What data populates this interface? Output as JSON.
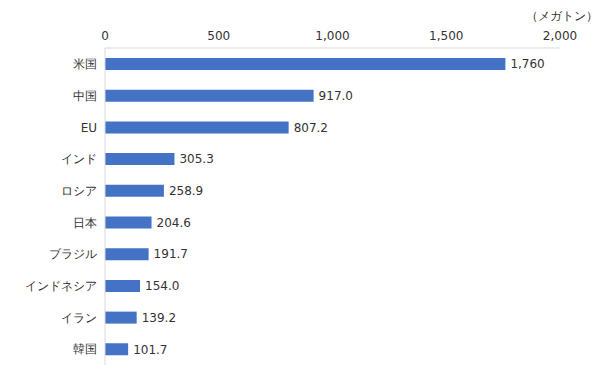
{
  "chart_data": {
    "type": "bar",
    "orientation": "horizontal",
    "xlabel": "（メガトン）",
    "categories": [
      "米国",
      "中国",
      "EU",
      "インド",
      "ロシア",
      "日本",
      "ブラジル",
      "インドネシア",
      "イラン",
      "韓国"
    ],
    "values": [
      1760,
      917.0,
      807.2,
      305.3,
      258.9,
      204.6,
      191.7,
      154.0,
      139.2,
      101.7
    ],
    "value_labels": [
      "1,760",
      "917.0",
      "807.2",
      "305.3",
      "258.9",
      "204.6",
      "191.7",
      "154.0",
      "139.2",
      "101.7"
    ],
    "data_labels": true,
    "color": "#4472c4",
    "xlim": [
      0,
      2000
    ],
    "xticks": [
      0,
      500,
      {
        "value": 1000,
        "label": "1,000"
      },
      {
        "value": 1500,
        "label": "1,500"
      },
      {
        "value": 2000,
        "label": "2,000"
      }
    ],
    "grid": false
  }
}
